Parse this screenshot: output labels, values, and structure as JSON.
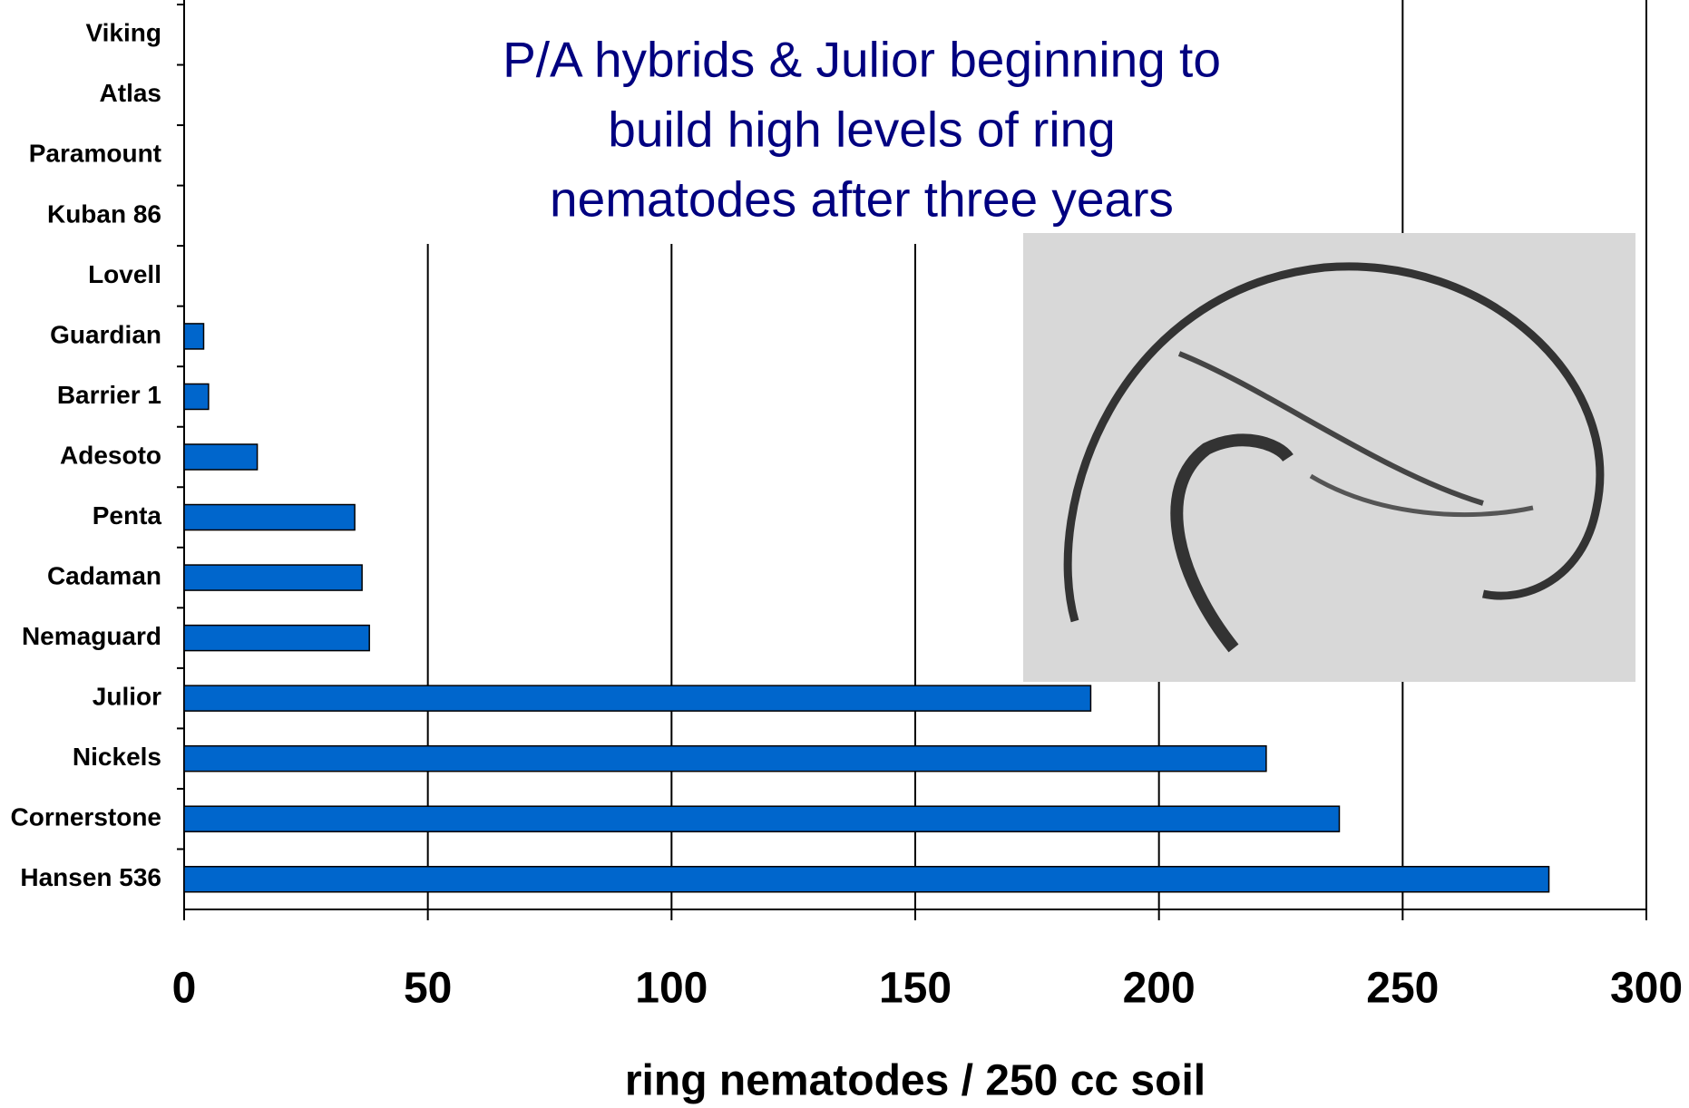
{
  "chart_data": {
    "type": "bar",
    "orientation": "horizontal",
    "categories": [
      "Viking",
      "Atlas",
      "Paramount",
      "Kuban 86",
      "Lovell",
      "Guardian",
      "Barrier 1",
      "Adesoto",
      "Penta",
      "Cadaman",
      "Nemaguard",
      "Julior",
      "Nickels",
      "Cornerstone",
      "Hansen 536"
    ],
    "values": [
      0,
      0,
      0,
      0,
      0,
      4,
      5,
      15,
      35,
      36.5,
      38,
      186,
      222,
      237,
      280
    ],
    "color": "#0066cc",
    "xlim": [
      0,
      300
    ],
    "xticks": [
      0,
      50,
      100,
      150,
      200,
      250,
      300
    ],
    "grid": true,
    "xlabel": "ring nematodes / 250 cc soil",
    "annotation": [
      "P/A hybrids & Julior beginning to",
      "build high levels of ring",
      "nematodes after three years"
    ]
  }
}
